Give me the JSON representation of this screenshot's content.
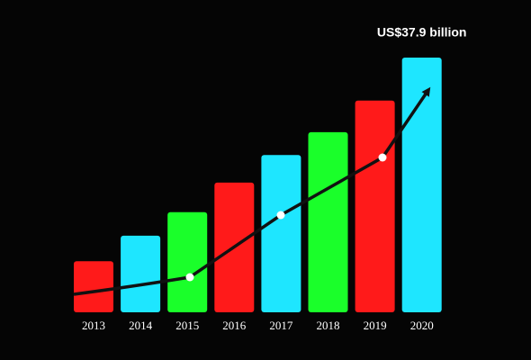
{
  "chart_data": {
    "type": "bar",
    "categories": [
      "2013",
      "2014",
      "2015",
      "2016",
      "2017",
      "2018",
      "2019",
      "2020"
    ],
    "values": [
      7.6,
      11.4,
      14.9,
      19.3,
      23.4,
      26.8,
      31.5,
      37.9
    ],
    "value_labels": [
      null,
      null,
      null,
      null,
      null,
      null,
      null,
      "US$37.9 billion"
    ],
    "colors": [
      "#ff1a1a",
      "#1ee6ff",
      "#1aff2a",
      "#ff1a1a",
      "#1ee6ff",
      "#1aff2a",
      "#ff1a1a",
      "#1ee6ff"
    ]
  }
}
